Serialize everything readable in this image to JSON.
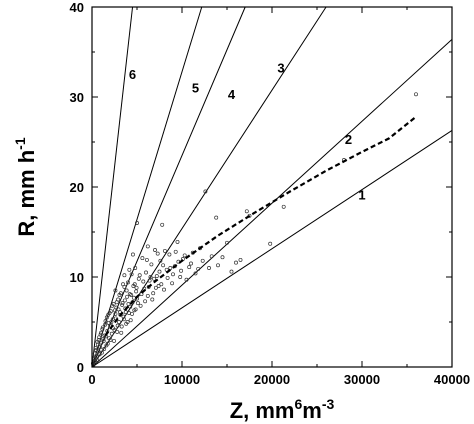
{
  "chart_data": {
    "type": "scatter",
    "xlabel": {
      "base": "Z, mm",
      "sup1": "6",
      "mid": "m",
      "sup2": "-3"
    },
    "ylabel": {
      "base": "R, mm h",
      "sup": "-1"
    },
    "xlim": [
      0,
      40000
    ],
    "ylim": [
      0,
      40
    ],
    "xticks": [
      0,
      10000,
      20000,
      30000,
      40000
    ],
    "yticks": [
      0,
      10,
      20,
      30,
      40
    ],
    "xtick_labels": [
      "0",
      "10000",
      "20000",
      "30000",
      "40000"
    ],
    "ytick_labels": [
      "0",
      "10",
      "20",
      "30",
      "40"
    ],
    "grid": false,
    "reference_lines": [
      {
        "label": "1",
        "slope": 0.000657,
        "label_at": [
          30000,
          18.6
        ]
      },
      {
        "label": "2",
        "slope": 0.00091,
        "label_at": [
          28500,
          24.8
        ]
      },
      {
        "label": "3",
        "slope": 0.001538,
        "label_at": [
          21000,
          32.7
        ]
      },
      {
        "label": "4",
        "slope": 0.00235,
        "label_at": [
          15500,
          29.8
        ]
      },
      {
        "label": "5",
        "slope": 0.00328,
        "label_at": [
          11500,
          30.5
        ]
      },
      {
        "label": "6",
        "slope": 0.00888,
        "label_at": [
          4500,
          32.0
        ]
      }
    ],
    "fit_curve": {
      "style": "dashed",
      "x": [
        1500,
        3000,
        5000,
        7000,
        10000,
        14000,
        18000,
        22000,
        26000,
        30000,
        33000,
        36000
      ],
      "y": [
        3.5,
        5.6,
        7.8,
        9.5,
        11.8,
        14.6,
        17.1,
        19.5,
        21.8,
        23.9,
        25.4,
        27.8
      ]
    },
    "scatter_points": [
      [
        100,
        0.4
      ],
      [
        200,
        1.0
      ],
      [
        300,
        1.5
      ],
      [
        350,
        0.6
      ],
      [
        400,
        2.1
      ],
      [
        500,
        1.2
      ],
      [
        600,
        2.8
      ],
      [
        700,
        1.8
      ],
      [
        800,
        3.3
      ],
      [
        900,
        2.2
      ],
      [
        1000,
        3.8
      ],
      [
        1100,
        1.6
      ],
      [
        1200,
        4.4
      ],
      [
        1300,
        2.9
      ],
      [
        1400,
        3.5
      ],
      [
        1500,
        5.1
      ],
      [
        1600,
        2.4
      ],
      [
        1700,
        4.0
      ],
      [
        1800,
        5.8
      ],
      [
        1900,
        3.2
      ],
      [
        2000,
        4.6
      ],
      [
        2100,
        6.2
      ],
      [
        2200,
        3.7
      ],
      [
        2300,
        5.3
      ],
      [
        2400,
        7.0
      ],
      [
        2500,
        4.1
      ],
      [
        2600,
        5.9
      ],
      [
        2700,
        6.6
      ],
      [
        2800,
        3.9
      ],
      [
        2900,
        7.5
      ],
      [
        3000,
        5.0
      ],
      [
        3100,
        6.1
      ],
      [
        3200,
        8.2
      ],
      [
        3300,
        4.5
      ],
      [
        3400,
        7.1
      ],
      [
        3500,
        5.6
      ],
      [
        3600,
        8.9
      ],
      [
        3700,
        6.5
      ],
      [
        3800,
        4.8
      ],
      [
        3900,
        7.8
      ],
      [
        4000,
        9.4
      ],
      [
        4100,
        6.0
      ],
      [
        4200,
        8.1
      ],
      [
        4300,
        5.2
      ],
      [
        4400,
        10.3
      ],
      [
        4500,
        7.2
      ],
      [
        4600,
        9.0
      ],
      [
        4700,
        6.3
      ],
      [
        4800,
        11.0
      ],
      [
        4900,
        8.4
      ],
      [
        5000,
        7.6
      ],
      [
        5200,
        9.8
      ],
      [
        5400,
        6.8
      ],
      [
        5600,
        12.1
      ],
      [
        5800,
        8.7
      ],
      [
        6000,
        10.5
      ],
      [
        6200,
        7.9
      ],
      [
        6400,
        9.6
      ],
      [
        6600,
        11.4
      ],
      [
        6800,
        8.2
      ],
      [
        7000,
        13.0
      ],
      [
        7200,
        10.1
      ],
      [
        7400,
        9.0
      ],
      [
        7600,
        11.8
      ],
      [
        7800,
        15.8
      ],
      [
        8000,
        8.6
      ],
      [
        8300,
        10.8
      ],
      [
        8600,
        12.5
      ],
      [
        8900,
        9.3
      ],
      [
        9200,
        11.2
      ],
      [
        9500,
        13.9
      ],
      [
        9800,
        10.0
      ],
      [
        10100,
        12.0
      ],
      [
        10500,
        9.7
      ],
      [
        11000,
        11.5
      ],
      [
        11500,
        10.4
      ],
      [
        12000,
        13.2
      ],
      [
        12600,
        19.5
      ],
      [
        13000,
        11.0
      ],
      [
        13800,
        16.6
      ],
      [
        14500,
        12.2
      ],
      [
        15000,
        13.8
      ],
      [
        16000,
        11.6
      ],
      [
        17200,
        17.3
      ],
      [
        17500,
        16.8
      ],
      [
        19800,
        13.7
      ],
      [
        21300,
        17.8
      ],
      [
        28000,
        23.0
      ],
      [
        36000,
        30.3
      ],
      [
        150,
        0.2
      ],
      [
        250,
        0.9
      ],
      [
        450,
        1.9
      ],
      [
        550,
        0.8
      ],
      [
        650,
        2.5
      ],
      [
        750,
        3.0
      ],
      [
        850,
        1.4
      ],
      [
        950,
        3.6
      ],
      [
        1050,
        2.7
      ],
      [
        1150,
        4.2
      ],
      [
        1250,
        3.1
      ],
      [
        1350,
        2.0
      ],
      [
        1450,
        4.7
      ],
      [
        1550,
        3.4
      ],
      [
        1650,
        5.5
      ],
      [
        1750,
        2.6
      ],
      [
        1850,
        4.9
      ],
      [
        1950,
        6.0
      ],
      [
        2050,
        3.0
      ],
      [
        2150,
        5.0
      ],
      [
        2250,
        6.8
      ],
      [
        2350,
        4.3
      ],
      [
        2450,
        2.9
      ],
      [
        2550,
        6.3
      ],
      [
        2650,
        5.4
      ],
      [
        2750,
        7.2
      ],
      [
        2850,
        4.6
      ],
      [
        2950,
        6.4
      ],
      [
        3050,
        8.0
      ],
      [
        3150,
        5.8
      ],
      [
        3250,
        3.8
      ],
      [
        3350,
        6.9
      ],
      [
        3450,
        9.2
      ],
      [
        3550,
        5.3
      ],
      [
        3650,
        7.4
      ],
      [
        3750,
        6.1
      ],
      [
        3850,
        8.5
      ],
      [
        3950,
        5.0
      ],
      [
        4050,
        7.0
      ],
      [
        4150,
        10.8
      ],
      [
        4250,
        6.7
      ],
      [
        4350,
        8.0
      ],
      [
        4450,
        5.9
      ],
      [
        4550,
        12.5
      ],
      [
        4650,
        7.7
      ],
      [
        4750,
        9.2
      ],
      [
        4850,
        6.4
      ],
      [
        4950,
        8.8
      ],
      [
        5100,
        7.1
      ],
      [
        5300,
        10.2
      ],
      [
        5500,
        8.1
      ],
      [
        5700,
        9.5
      ],
      [
        5900,
        7.3
      ],
      [
        6100,
        11.9
      ],
      [
        6300,
        8.9
      ],
      [
        6500,
        10.0
      ],
      [
        6700,
        7.5
      ],
      [
        6900,
        9.8
      ],
      [
        7100,
        8.8
      ],
      [
        7300,
        12.6
      ],
      [
        7500,
        10.6
      ],
      [
        7700,
        9.2
      ],
      [
        7900,
        11.3
      ],
      [
        8100,
        12.9
      ],
      [
        8400,
        9.9
      ],
      [
        8700,
        11.0
      ],
      [
        9000,
        10.3
      ],
      [
        9300,
        12.8
      ],
      [
        9600,
        11.7
      ],
      [
        9900,
        10.7
      ],
      [
        10300,
        12.4
      ],
      [
        10800,
        11.1
      ],
      [
        11200,
        12.7
      ],
      [
        11800,
        10.9
      ],
      [
        12300,
        11.8
      ],
      [
        13300,
        12.3
      ],
      [
        14000,
        11.3
      ],
      [
        15500,
        10.6
      ],
      [
        16500,
        11.9
      ],
      [
        5000,
        16.0
      ],
      [
        3600,
        10.2
      ],
      [
        2600,
        8.5
      ],
      [
        6200,
        13.4
      ]
    ]
  }
}
